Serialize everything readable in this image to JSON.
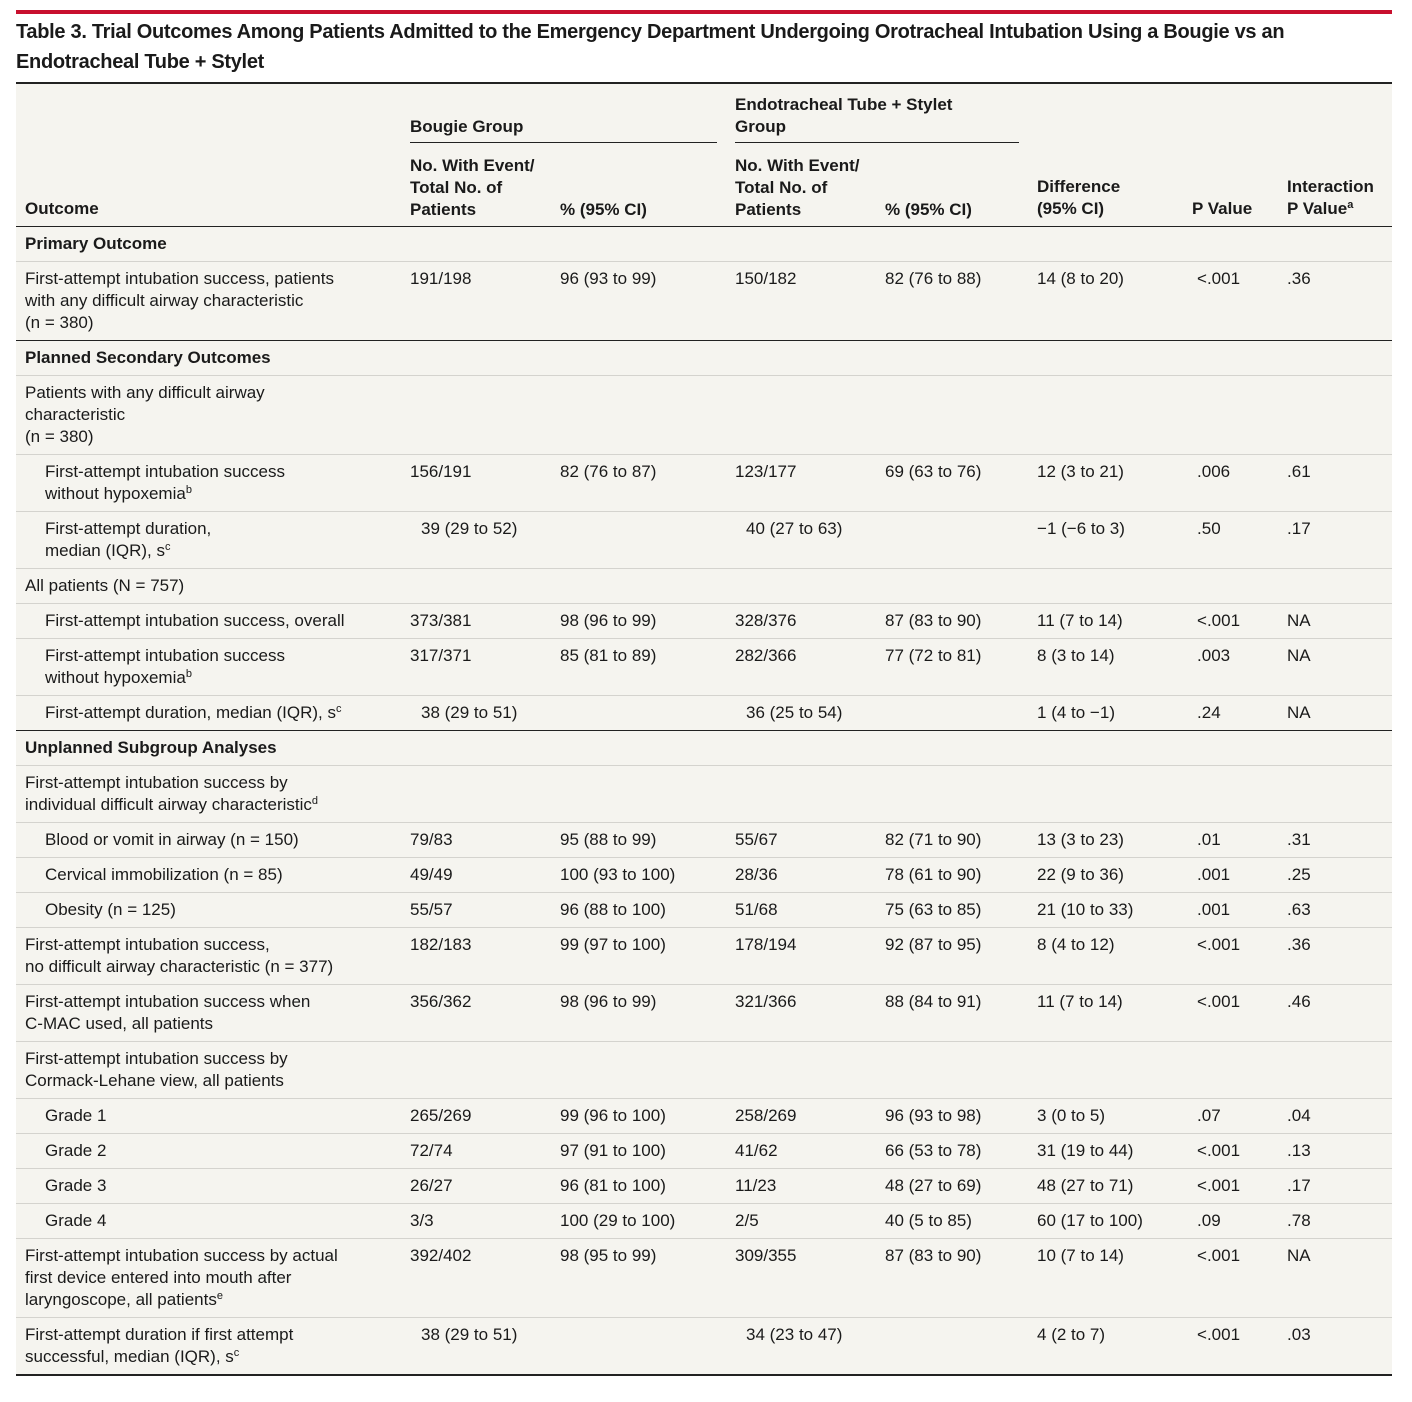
{
  "title": "Table 3. Trial Outcomes Among Patients Admitted to the Emergency Department Undergoing Orotracheal Intubation Using a Bougie vs an Endotracheal Tube + Stylet",
  "header": {
    "outcome": "Outcome",
    "bougie_group": "Bougie Group",
    "ett_group": "Endotracheal Tube + Stylet Group",
    "bougie_n": "No. With Event/ Total No. of Patients",
    "bougie_pct": "% (95% CI)",
    "ett_n": "No. With Event/ Total No. of Patients",
    "ett_pct": "% (95% CI)",
    "difference": "Difference (95% CI)",
    "p_value": "P Value",
    "interaction": "Interaction P Value",
    "interaction_sup": "a"
  },
  "rows": [
    {
      "kind": "section",
      "label": [
        "Primary Outcome"
      ]
    },
    {
      "kind": "row",
      "label": [
        "First-attempt intubation success, patients",
        "with any difficult airway characteristic",
        "(n = 380)"
      ],
      "bougie_n": "191/198",
      "bougie_pct": "96 (93 to 99)",
      "ett_n": "150/182",
      "ett_pct": "82 (76 to 88)",
      "diff": "14 (8 to 20)",
      "p": "<.001",
      "interaction": ".36"
    },
    {
      "kind": "section",
      "label": [
        "Planned Secondary Outcomes"
      ]
    },
    {
      "kind": "group",
      "label": [
        "Patients with any difficult airway",
        "characteristic",
        "(n = 380)"
      ]
    },
    {
      "kind": "row",
      "indent": true,
      "label": [
        "First-attempt intubation success",
        "without hypoxemia"
      ],
      "sup": "b",
      "bougie_n": "156/191",
      "bougie_pct": "82 (76 to 87)",
      "ett_n": "123/177",
      "ett_pct": "69 (63 to 76)",
      "diff": "12 (3 to 21)",
      "p": ".006",
      "interaction": ".61"
    },
    {
      "kind": "row",
      "indent": true,
      "label": [
        "First-attempt duration,",
        "median (IQR), s"
      ],
      "sup": "c",
      "bougie_median": "39 (29 to 52)",
      "ett_median": "40 (27 to 63)",
      "diff": "−1 (−6 to 3)",
      "p": ".50",
      "interaction": ".17"
    },
    {
      "kind": "group",
      "label": [
        "All patients (N = 757)"
      ]
    },
    {
      "kind": "row",
      "indent": true,
      "label": [
        "First-attempt intubation success, overall"
      ],
      "bougie_n": "373/381",
      "bougie_pct": "98 (96 to 99)",
      "ett_n": "328/376",
      "ett_pct": "87 (83 to 90)",
      "diff": "11 (7 to 14)",
      "p": "<.001",
      "interaction": "NA"
    },
    {
      "kind": "row",
      "indent": true,
      "label": [
        "First-attempt intubation success",
        "without hypoxemia"
      ],
      "sup": "b",
      "bougie_n": "317/371",
      "bougie_pct": "85 (81 to 89)",
      "ett_n": "282/366",
      "ett_pct": "77 (72 to 81)",
      "diff": "8 (3 to 14)",
      "p": ".003",
      "interaction": "NA"
    },
    {
      "kind": "row",
      "indent": true,
      "label": [
        "First-attempt duration, median (IQR), s"
      ],
      "sup": "c",
      "bougie_median": "38 (29 to 51)",
      "ett_median": "36 (25 to 54)",
      "diff": "1 (4 to −1)",
      "p": ".24",
      "interaction": "NA"
    },
    {
      "kind": "section",
      "label": [
        "Unplanned Subgroup Analyses"
      ]
    },
    {
      "kind": "group",
      "label": [
        "First-attempt intubation success by",
        "individual difficult airway characteristic"
      ],
      "sup": "d"
    },
    {
      "kind": "row",
      "indent": true,
      "label": [
        "Blood or vomit in airway (n = 150)"
      ],
      "bougie_n": "79/83",
      "bougie_pct": "95 (88 to 99)",
      "ett_n": "55/67",
      "ett_pct": "82 (71 to 90)",
      "diff": "13 (3 to 23)",
      "p": ".01",
      "interaction": ".31"
    },
    {
      "kind": "row",
      "indent": true,
      "label": [
        "Cervical immobilization (n = 85)"
      ],
      "bougie_n": "49/49",
      "bougie_pct": "100 (93 to 100)",
      "ett_n": "28/36",
      "ett_pct": "78 (61 to 90)",
      "diff": "22 (9 to 36)",
      "p": ".001",
      "interaction": ".25"
    },
    {
      "kind": "row",
      "indent": true,
      "label": [
        "Obesity (n = 125)"
      ],
      "bougie_n": "55/57",
      "bougie_pct": "96 (88 to 100)",
      "ett_n": "51/68",
      "ett_pct": "75 (63 to 85)",
      "diff": "21 (10 to 33)",
      "p": ".001",
      "interaction": ".63"
    },
    {
      "kind": "row",
      "label": [
        "First-attempt intubation success,",
        "no difficult airway characteristic (n = 377)"
      ],
      "bougie_n": "182/183",
      "bougie_pct": "99 (97 to 100)",
      "ett_n": "178/194",
      "ett_pct": "92 (87 to 95)",
      "diff": "8 (4 to 12)",
      "p": "<.001",
      "interaction": ".36"
    },
    {
      "kind": "row",
      "label": [
        "First-attempt intubation success when",
        "C-MAC used, all patients"
      ],
      "bougie_n": "356/362",
      "bougie_pct": "98 (96 to 99)",
      "ett_n": "321/366",
      "ett_pct": "88 (84 to 91)",
      "diff": "11 (7 to 14)",
      "p": "<.001",
      "interaction": ".46"
    },
    {
      "kind": "group",
      "label": [
        "First-attempt intubation success by",
        "Cormack-Lehane view, all patients"
      ]
    },
    {
      "kind": "row",
      "indent": true,
      "label": [
        "Grade 1"
      ],
      "bougie_n": "265/269",
      "bougie_pct": "99 (96 to 100)",
      "ett_n": "258/269",
      "ett_pct": "96 (93 to 98)",
      "diff": "3 (0 to 5)",
      "p": ".07",
      "interaction": ".04"
    },
    {
      "kind": "row",
      "indent": true,
      "label": [
        "Grade 2"
      ],
      "bougie_n": "72/74",
      "bougie_pct": "97 (91 to 100)",
      "ett_n": "41/62",
      "ett_pct": "66 (53 to 78)",
      "diff": "31 (19 to 44)",
      "p": "<.001",
      "interaction": ".13"
    },
    {
      "kind": "row",
      "indent": true,
      "label": [
        "Grade 3"
      ],
      "bougie_n": "26/27",
      "bougie_pct": "96 (81 to 100)",
      "ett_n": "11/23",
      "ett_pct": "48 (27 to 69)",
      "diff": "48 (27 to 71)",
      "p": "<.001",
      "interaction": ".17"
    },
    {
      "kind": "row",
      "indent": true,
      "label": [
        "Grade 4"
      ],
      "bougie_n": "3/3",
      "bougie_pct": "100 (29 to 100)",
      "ett_n": "2/5",
      "ett_pct": "40 (5 to 85)",
      "diff": "60 (17 to 100)",
      "p": ".09",
      "interaction": ".78"
    },
    {
      "kind": "row",
      "label": [
        "First-attempt intubation success by actual",
        "first device entered into mouth after",
        "laryngoscope, all patients"
      ],
      "sup": "e",
      "bougie_n": "392/402",
      "bougie_pct": "98 (95 to 99)",
      "ett_n": "309/355",
      "ett_pct": "87 (83 to 90)",
      "diff": "10 (7 to 14)",
      "p": "<.001",
      "interaction": "NA"
    },
    {
      "kind": "row",
      "label": [
        "First-attempt duration if first attempt",
        "successful, median (IQR), s"
      ],
      "sup": "c",
      "bougie_median": "38 (29 to 51)",
      "ett_median": "34 (23 to 47)",
      "diff": "4 (2 to 7)",
      "p": "<.001",
      "interaction": ".03"
    }
  ]
}
